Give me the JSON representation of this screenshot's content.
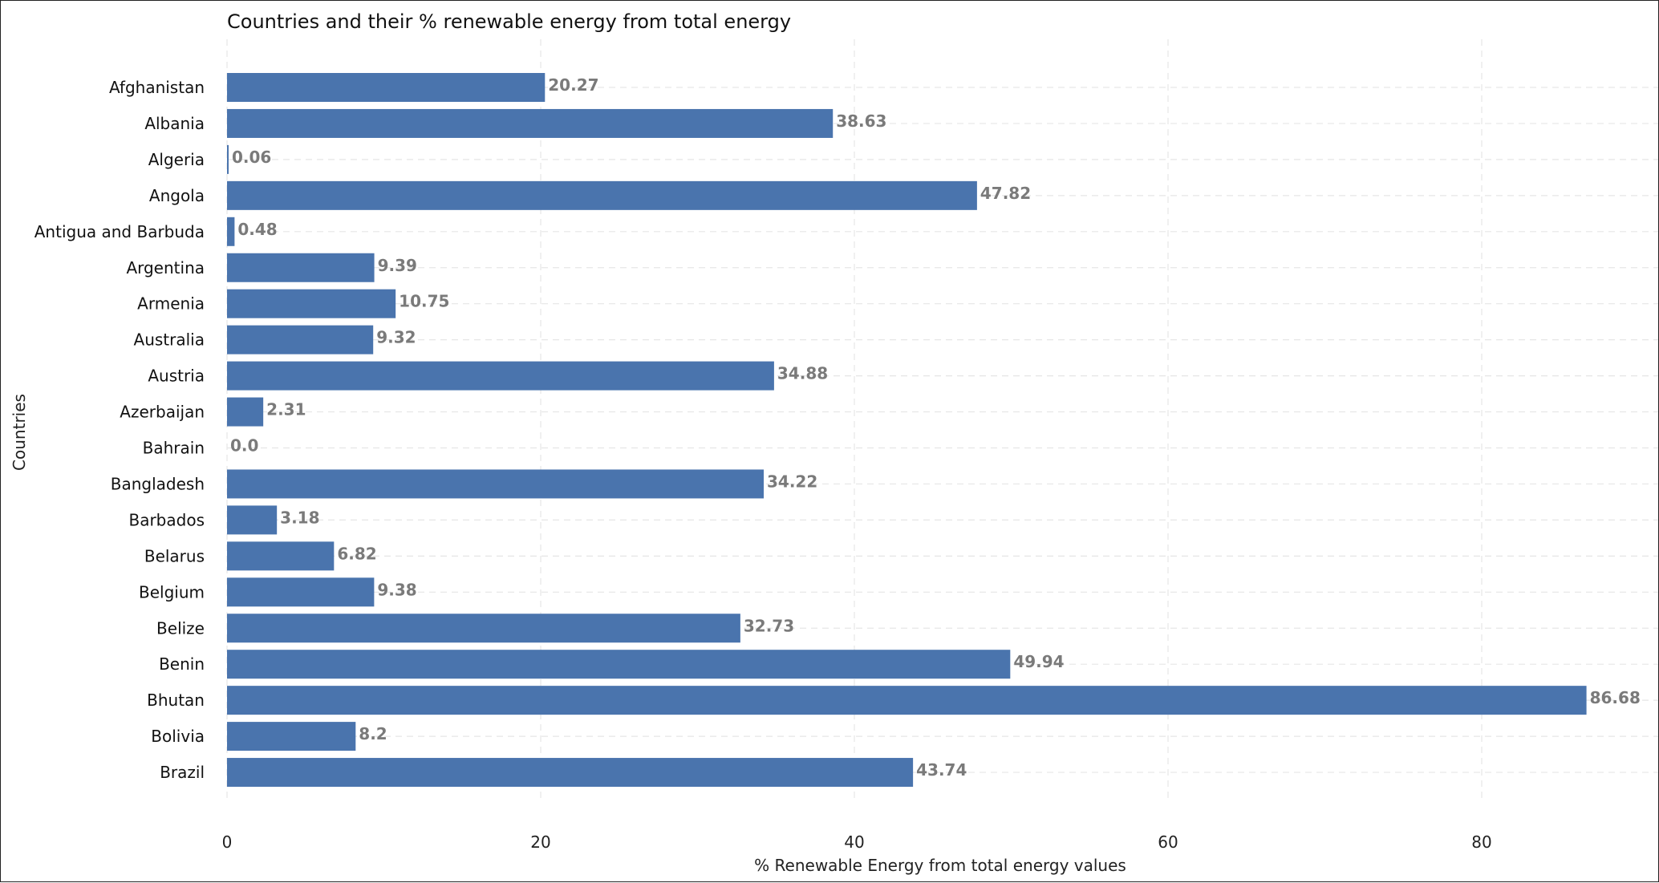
{
  "chart_data": {
    "type": "bar",
    "orientation": "horizontal",
    "title": "Countries and their % renewable energy from total energy",
    "xlabel": "% Renewable Energy from total energy values",
    "ylabel": "Countries",
    "xlim": [
      0,
      90
    ],
    "xticks": [
      0,
      20,
      40,
      60,
      80
    ],
    "xtick_labels": [
      "0",
      "20",
      "40",
      "60",
      "80"
    ],
    "grid": true,
    "bar_color": "#4a74ad",
    "value_label_color": "#7a7a7a",
    "categories": [
      "Afghanistan",
      "Albania",
      "Algeria",
      "Angola",
      "Antigua and Barbuda",
      "Argentina",
      "Armenia",
      "Australia",
      "Austria",
      "Azerbaijan",
      "Bahrain",
      "Bangladesh",
      "Barbados",
      "Belarus",
      "Belgium",
      "Belize",
      "Benin",
      "Bhutan",
      "Bolivia",
      "Brazil"
    ],
    "values": [
      20.27,
      38.63,
      0.06,
      47.82,
      0.48,
      9.39,
      10.75,
      9.32,
      34.88,
      2.31,
      0.0,
      34.22,
      3.18,
      6.82,
      9.38,
      32.73,
      49.94,
      86.68,
      8.2,
      43.74
    ],
    "value_labels": [
      "20.27",
      "38.63",
      "0.06",
      "47.82",
      "0.48",
      "9.39",
      "10.75",
      "9.32",
      "34.88",
      "2.31",
      "0.0",
      "34.22",
      "3.18",
      "6.82",
      "9.38",
      "32.73",
      "49.94",
      "86.68",
      "8.2",
      "43.74"
    ]
  }
}
